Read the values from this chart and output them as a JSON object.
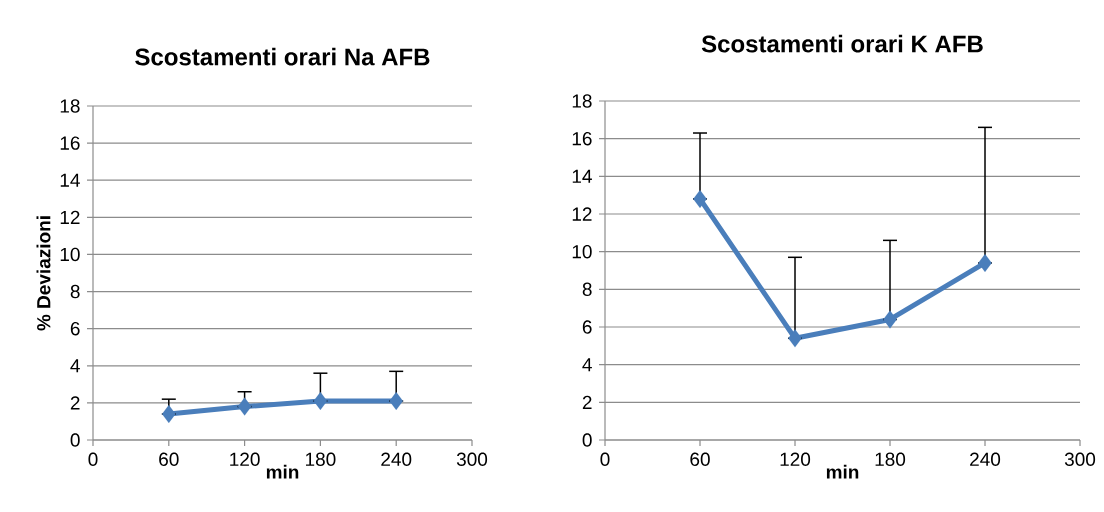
{
  "chart_data": [
    {
      "type": "line",
      "title": "Scostamenti orari Na AFB",
      "xlabel": "min",
      "ylabel": "% Deviazioni",
      "x": [
        60,
        120,
        180,
        240
      ],
      "values": [
        1.4,
        1.8,
        2.1,
        2.1
      ],
      "color": "#4a7ebb",
      "errors": [
        [
          1.4,
          2.2
        ],
        [
          1.8,
          2.6
        ],
        [
          2.1,
          3.6
        ],
        [
          2.1,
          3.7
        ]
      ],
      "xlim": [
        0,
        300
      ],
      "xticks": [
        0,
        60,
        120,
        180,
        240,
        300
      ],
      "ylim": [
        0,
        18
      ],
      "yticks": [
        0,
        2,
        4,
        6,
        8,
        10,
        12,
        14,
        16,
        18
      ],
      "grid": "y",
      "marker": "diamond",
      "line_style": "solid"
    },
    {
      "type": "line",
      "title": "Scostamenti orari K AFB",
      "xlabel": "min",
      "x": [
        60,
        120,
        180,
        240
      ],
      "values": [
        12.8,
        5.4,
        6.4,
        9.4
      ],
      "color": "#4a7ebb",
      "errors": [
        [
          12.8,
          16.3
        ],
        [
          5.4,
          9.7
        ],
        [
          6.4,
          10.6
        ],
        [
          9.4,
          16.6
        ]
      ],
      "xlim": [
        0,
        300
      ],
      "xticks": [
        0,
        60,
        120,
        180,
        240,
        300
      ],
      "ylim": [
        0,
        18
      ],
      "yticks": [
        0,
        2,
        4,
        6,
        8,
        10,
        12,
        14,
        16,
        18
      ],
      "grid": "y",
      "marker": "diamond",
      "line_style": "solid"
    }
  ]
}
